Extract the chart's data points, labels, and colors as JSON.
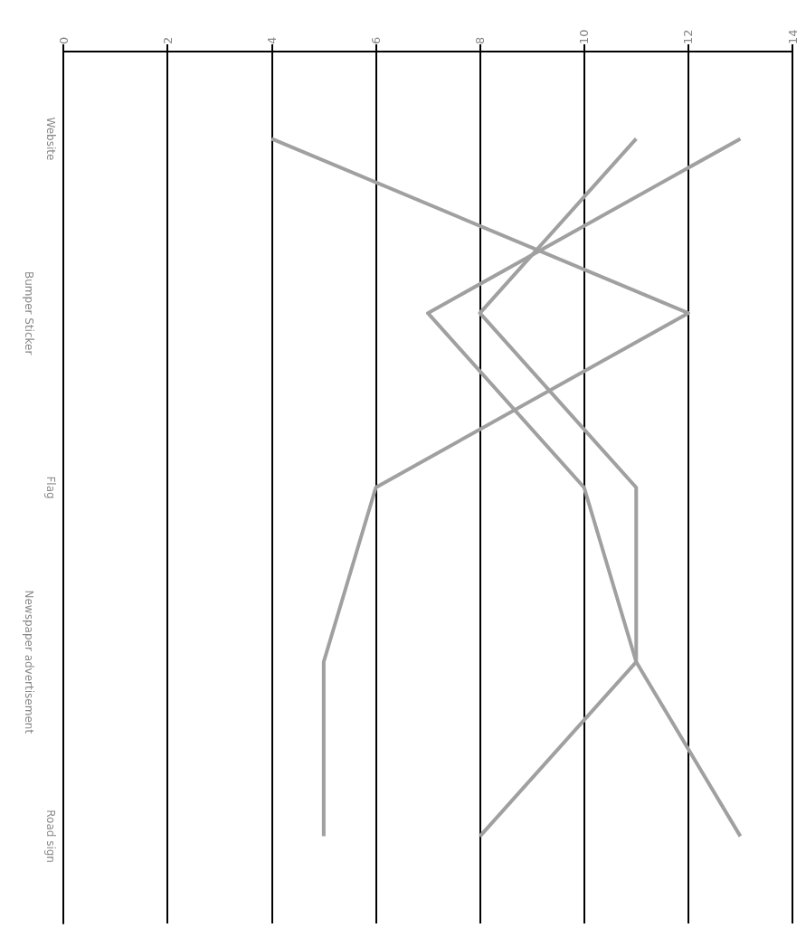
{
  "chart_data": {
    "type": "line",
    "orientation": "horizontal",
    "categories": [
      "Website",
      "Bumper Sticker",
      "Flag",
      "Newspaper advertisement",
      "Road sign"
    ],
    "series": [
      {
        "color": "#a0a0a0",
        "values": [
          4,
          12,
          6,
          5,
          5
        ]
      },
      {
        "color": "#a0a0a0",
        "values": [
          13,
          7,
          10,
          11,
          13
        ]
      },
      {
        "color": "#a0a0a0",
        "values": [
          11,
          8,
          11,
          11,
          8
        ]
      }
    ],
    "xlim": [
      0,
      14
    ],
    "xticks": [
      0,
      2,
      4,
      6,
      8,
      10,
      12,
      14
    ],
    "grid": "x",
    "marker": "none",
    "line_style": "solid"
  }
}
